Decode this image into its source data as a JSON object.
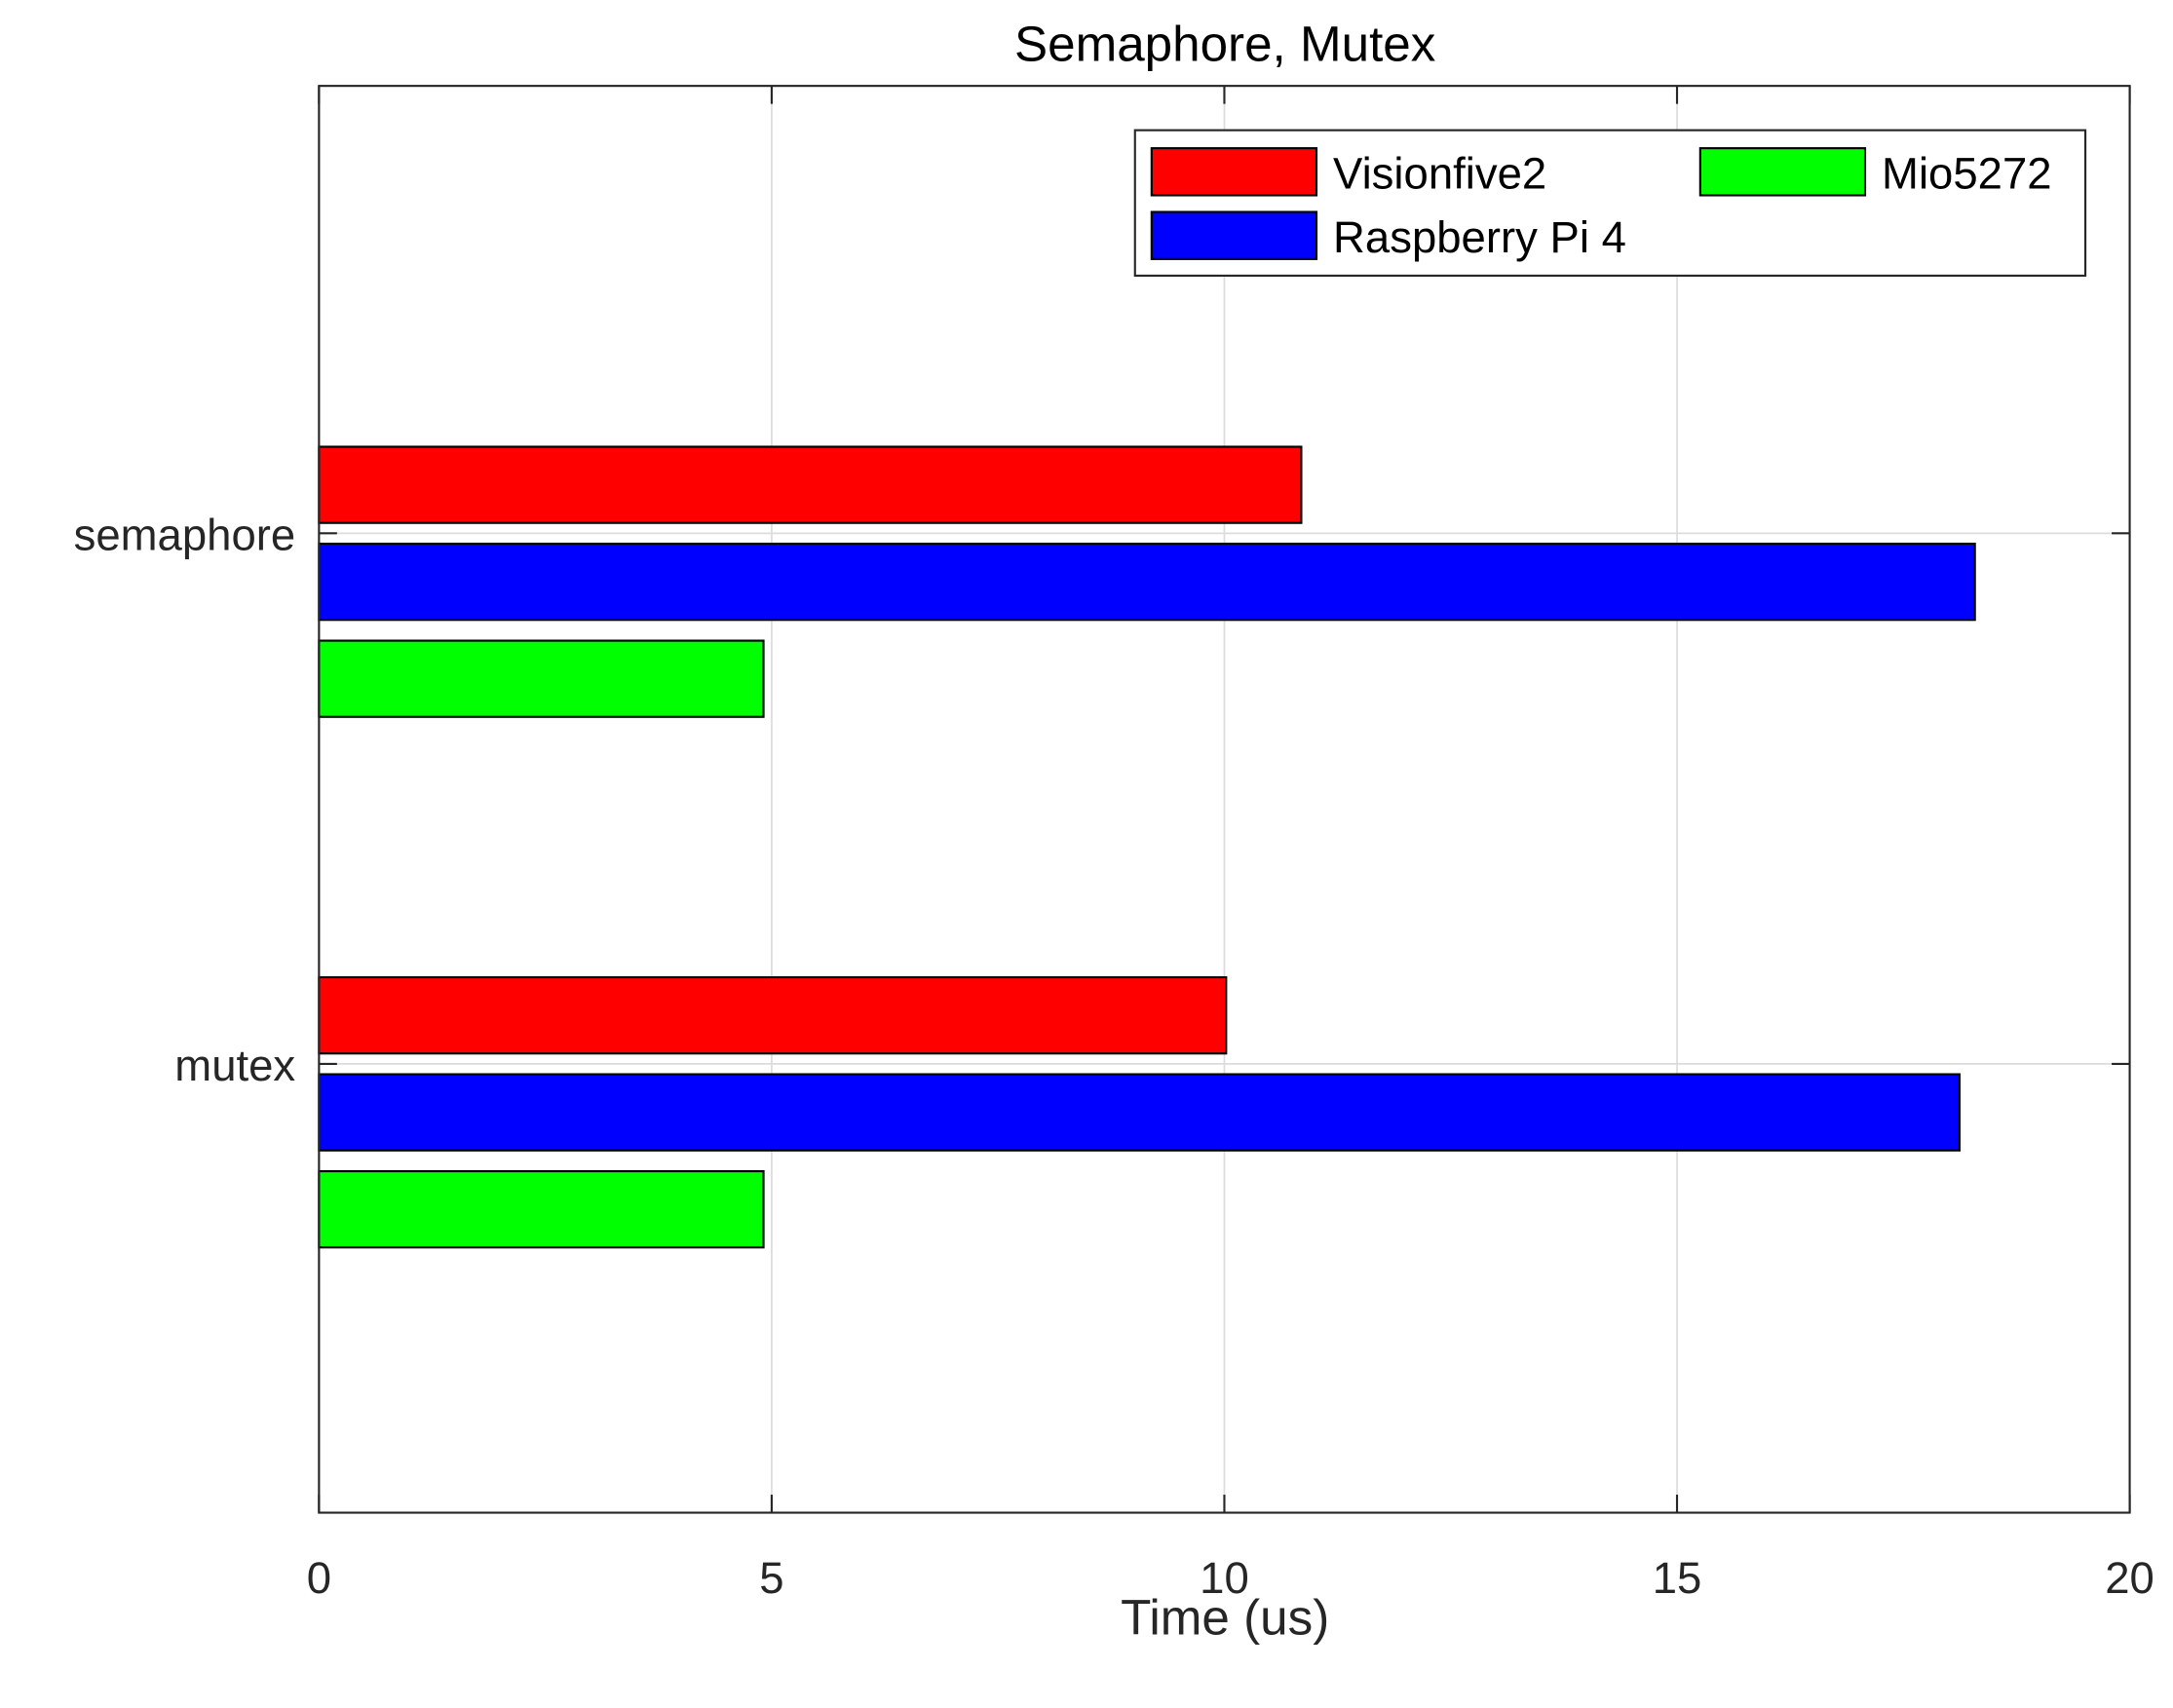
{
  "chart_data": {
    "type": "bar",
    "orientation": "horizontal",
    "title": "Semaphore, Mutex",
    "xlabel": "Time (us)",
    "ylabel": "",
    "categories": [
      "semaphore",
      "mutex"
    ],
    "series": [
      {
        "name": "Visionfive2",
        "color": "#ff0000",
        "values": [
          10.85,
          10.02
        ]
      },
      {
        "name": "Raspberry Pi 4",
        "color": "#0000ff",
        "values": [
          18.29,
          18.12
        ]
      },
      {
        "name": "Mio5272",
        "color": "#00ff00",
        "values": [
          4.91,
          4.91
        ]
      }
    ],
    "xlim": [
      0,
      20
    ],
    "xticks": [
      "0",
      "5",
      "10",
      "15",
      "20"
    ],
    "grid": true,
    "legend_position": "top-right"
  }
}
